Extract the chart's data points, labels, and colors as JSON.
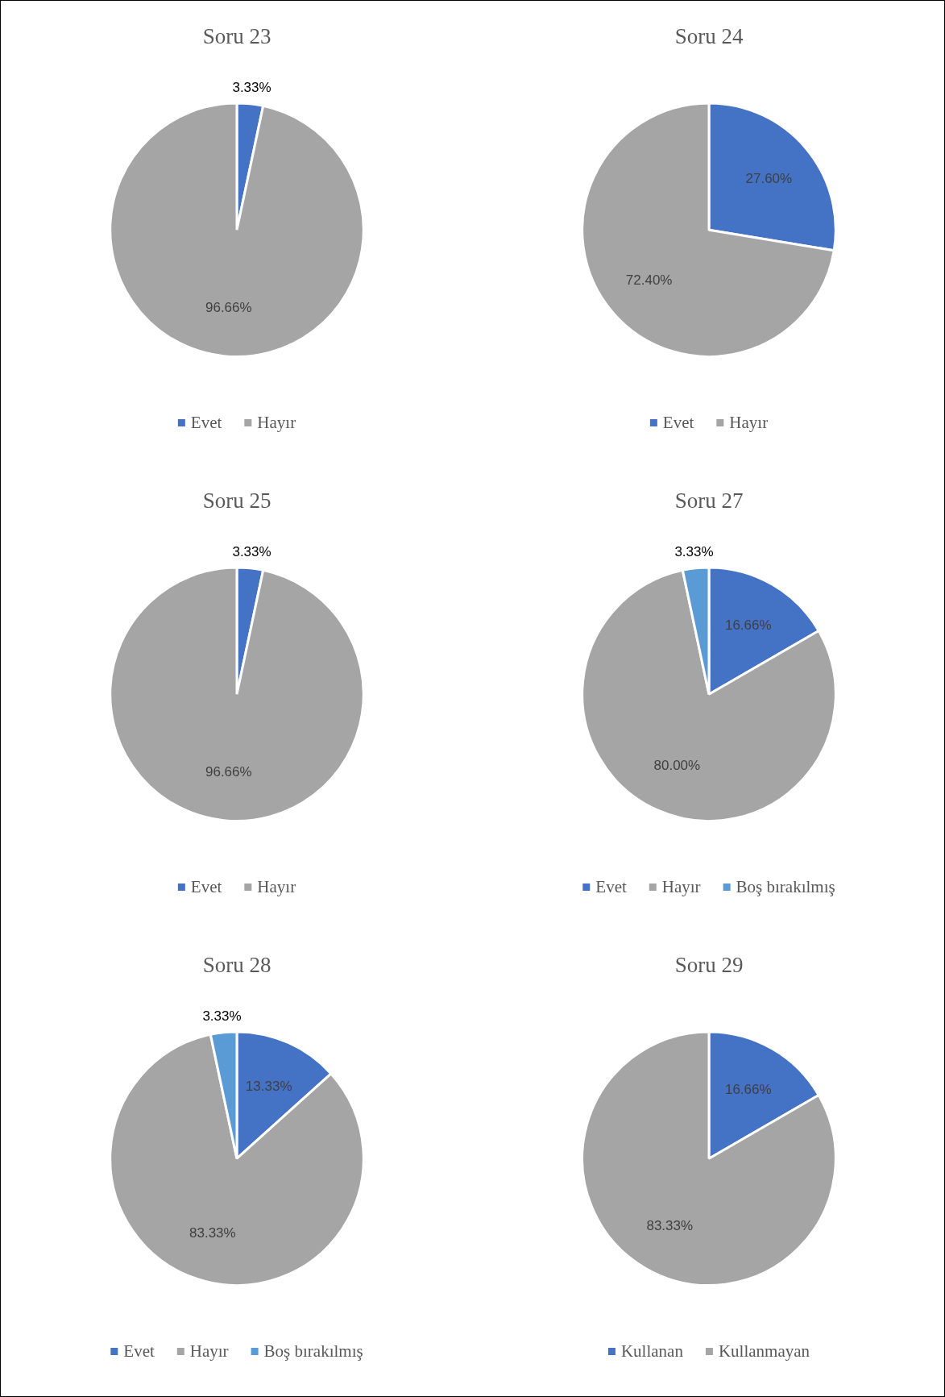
{
  "chart_data": [
    {
      "type": "pie",
      "title": "Soru 23",
      "categories": [
        "Evet",
        "Hayır"
      ],
      "values": [
        3.33,
        96.66
      ],
      "colors": [
        "#4472c4",
        "#a5a5a5"
      ],
      "value_labels": [
        "3.33%",
        "96.66%"
      ],
      "legend": "bottom"
    },
    {
      "type": "pie",
      "title": "Soru 24",
      "categories": [
        "Evet",
        "Hayır"
      ],
      "values": [
        27.6,
        72.4
      ],
      "colors": [
        "#4472c4",
        "#a5a5a5"
      ],
      "value_labels": [
        "27.60%",
        "72.40%"
      ],
      "legend": "bottom"
    },
    {
      "type": "pie",
      "title": "Soru 25",
      "categories": [
        "Evet",
        "Hayır"
      ],
      "values": [
        3.33,
        96.66
      ],
      "colors": [
        "#4472c4",
        "#a5a5a5"
      ],
      "value_labels": [
        "3.33%",
        "96.66%"
      ],
      "legend": "bottom"
    },
    {
      "type": "pie",
      "title": "Soru 27",
      "categories": [
        "Evet",
        "Hayır",
        "Boş bırakılmış"
      ],
      "values": [
        16.66,
        80,
        3.33
      ],
      "colors": [
        "#4472c4",
        "#a5a5a5",
        "#5b9bd5"
      ],
      "value_labels": [
        "16.66%",
        "80.00%",
        "3.33%"
      ],
      "legend": "bottom"
    },
    {
      "type": "pie",
      "title": "Soru 28",
      "categories": [
        "Evet",
        "Hayır",
        "Boş bırakılmış"
      ],
      "values": [
        13.33,
        83.33,
        3.33
      ],
      "colors": [
        "#4472c4",
        "#a5a5a5",
        "#5b9bd5"
      ],
      "value_labels": [
        "13.33%",
        "83.33%",
        "3.33%"
      ],
      "legend": "bottom"
    },
    {
      "type": "pie",
      "title": "Soru 29",
      "categories": [
        "Kullanan",
        "Kullanmayan"
      ],
      "values": [
        16.66,
        83.33
      ],
      "colors": [
        "#4472c4",
        "#a5a5a5"
      ],
      "value_labels": [
        "16.66%",
        "83.33%"
      ],
      "legend": "bottom"
    }
  ]
}
